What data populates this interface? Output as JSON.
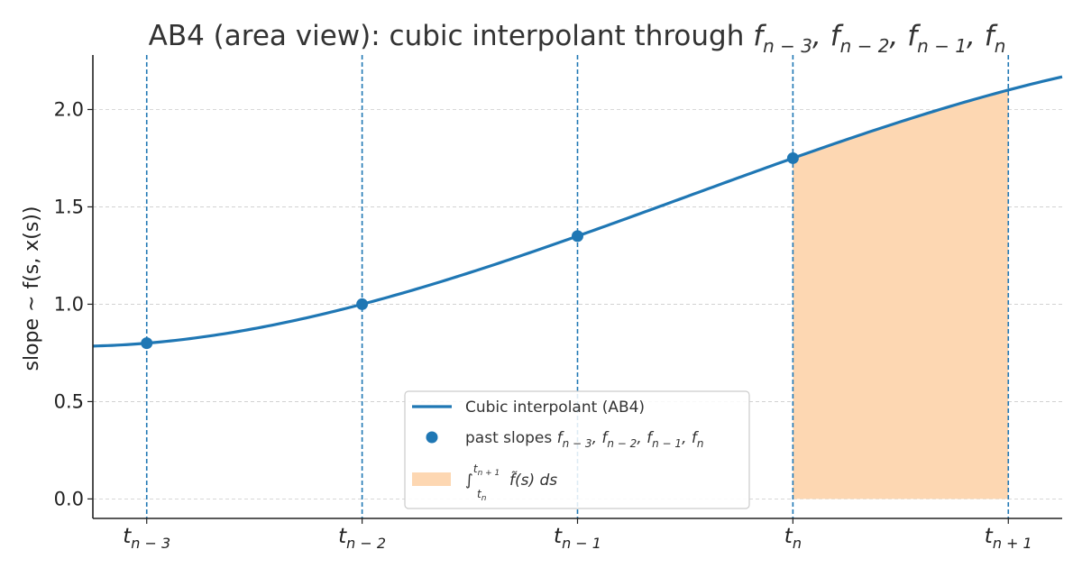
{
  "chart_data": {
    "type": "line",
    "title": {
      "prefix": "AB4 (area view): cubic interpolant through ",
      "parts": [
        {
          "base": "f",
          "sub": "n − 3",
          "sep": ", "
        },
        {
          "base": "f",
          "sub": "n − 2",
          "sep": ", "
        },
        {
          "base": "f",
          "sub": "n − 1",
          "sep": ", "
        },
        {
          "base": "f",
          "sub": "n",
          "sep": ""
        }
      ]
    },
    "ylabel": "slope ~ f(s, x(s))",
    "xlim": [
      -0.25,
      4.25
    ],
    "ylim": [
      -0.1,
      2.28
    ],
    "yticks": [
      0.0,
      0.5,
      1.0,
      1.5,
      2.0
    ],
    "ytick_labels": [
      "0.0",
      "0.5",
      "1.0",
      "1.5",
      "2.0"
    ],
    "xticks": [
      0,
      1,
      2,
      3,
      4
    ],
    "xtick_labels": [
      {
        "base": "t",
        "sub": "n − 3"
      },
      {
        "base": "t",
        "sub": "n − 2"
      },
      {
        "base": "t",
        "sub": "n − 1"
      },
      {
        "base": "t",
        "sub": "n"
      },
      {
        "base": "t",
        "sub": "n + 1"
      }
    ],
    "grid": "horizontal dashed",
    "vertical_markers": [
      0,
      1,
      2,
      3,
      4
    ],
    "series": [
      {
        "name": "Cubic interpolant (AB4)",
        "kind": "line",
        "color": "#1f77b4"
      },
      {
        "name": "past slopes",
        "kind": "scatter",
        "color": "#1f77b4",
        "x": [
          0,
          1,
          2,
          3
        ],
        "y": [
          0.8,
          1.0,
          1.35,
          1.75
        ]
      },
      {
        "name": "area",
        "kind": "area",
        "color": "#fdd7b2",
        "x_range": [
          3,
          4
        ]
      }
    ],
    "legend": {
      "placement": "lower center",
      "line_label": "Cubic interpolant (AB4)",
      "points_prefix": "past slopes ",
      "points_parts": [
        {
          "base": "f",
          "sub": "n − 3",
          "sep": ", "
        },
        {
          "base": "f",
          "sub": "n − 2",
          "sep": ", "
        },
        {
          "base": "f",
          "sub": "n − 1",
          "sep": ", "
        },
        {
          "base": "f",
          "sub": "n",
          "sep": ""
        }
      ],
      "area_integral": "∫",
      "area_upper": "t",
      "area_upper_sub": "n + 1",
      "area_lower": "t",
      "area_lower_sub": "n",
      "area_integrand": "f̃(s) ds"
    },
    "colors": {
      "line": "#1f77b4",
      "area": "#fdd7b2",
      "grid": "#cccccc",
      "axis": "#222222"
    }
  }
}
